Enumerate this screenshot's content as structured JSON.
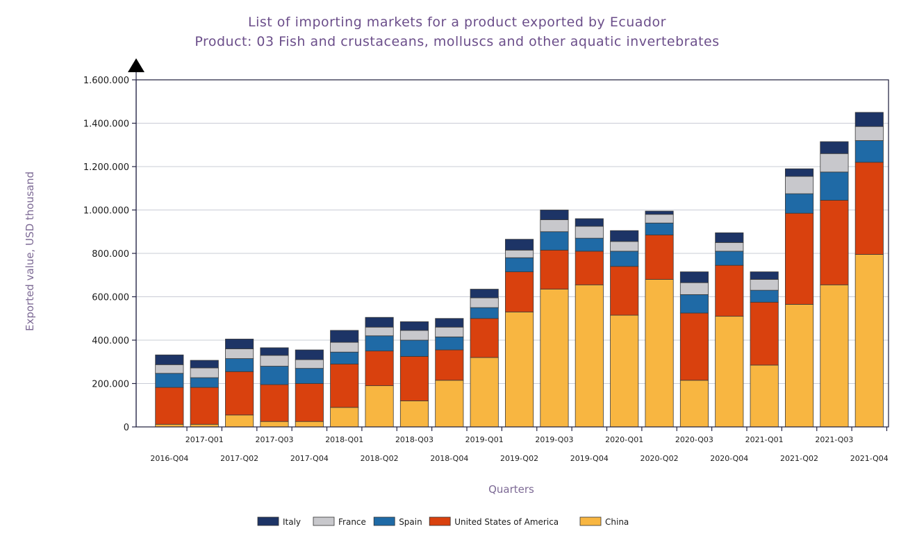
{
  "chart_data": {
    "type": "bar",
    "stacked": true,
    "title": "List of importing markets for a product exported by Ecuador",
    "subtitle": "Product: 03 Fish and crustaceans, molluscs and other aquatic invertebrates",
    "xlabel": "Quarters",
    "ylabel": "Exported value, USD thousand",
    "ylim": [
      0,
      1600000
    ],
    "yticks": [
      0,
      200000,
      400000,
      600000,
      800000,
      1000000,
      1200000,
      1400000,
      1600000
    ],
    "ytick_labels": [
      "0",
      "200.000",
      "400.000",
      "600.000",
      "800.000",
      "1.000.000",
      "1.200.000",
      "1.400.000",
      "1.600.000"
    ],
    "grid": true,
    "legend_position": "bottom",
    "categories": [
      "2016-Q04",
      "2017-Q01",
      "2017-Q02",
      "2017-Q03",
      "2017-Q04",
      "2018-Q01",
      "2018-Q02",
      "2018-Q03",
      "2018-Q04",
      "2019-Q01",
      "2019-Q02",
      "2019-Q03",
      "2019-Q04",
      "2020-Q01",
      "2020-Q02",
      "2020-Q03",
      "2020-Q04",
      "2021-Q01",
      "2021-Q02",
      "2021-Q03",
      "2021-Q04"
    ],
    "series": [
      {
        "name": "China",
        "color": "#f8b641",
        "values": [
          12000,
          12000,
          55000,
          25000,
          25000,
          90000,
          190000,
          120000,
          215000,
          320000,
          530000,
          635000,
          655000,
          515000,
          680000,
          215000,
          510000,
          285000,
          565000,
          655000,
          795000
        ]
      },
      {
        "name": "United States of America",
        "color": "#d9410e",
        "values": [
          170000,
          170000,
          200000,
          170000,
          175000,
          200000,
          160000,
          205000,
          140000,
          180000,
          185000,
          180000,
          155000,
          225000,
          205000,
          310000,
          235000,
          290000,
          420000,
          390000,
          425000
        ]
      },
      {
        "name": "Spain",
        "color": "#1f6aa6",
        "values": [
          65000,
          45000,
          60000,
          85000,
          70000,
          55000,
          70000,
          75000,
          60000,
          50000,
          65000,
          85000,
          60000,
          70000,
          55000,
          85000,
          65000,
          55000,
          90000,
          130000,
          100000
        ]
      },
      {
        "name": "France",
        "color": "#c8c8cc",
        "values": [
          40000,
          45000,
          45000,
          50000,
          40000,
          45000,
          40000,
          45000,
          45000,
          45000,
          35000,
          55000,
          55000,
          45000,
          40000,
          55000,
          40000,
          50000,
          80000,
          85000,
          65000
        ]
      },
      {
        "name": "Italy",
        "color": "#1d3466",
        "values": [
          45000,
          35000,
          45000,
          35000,
          45000,
          55000,
          45000,
          40000,
          40000,
          40000,
          50000,
          45000,
          35000,
          50000,
          15000,
          50000,
          45000,
          35000,
          35000,
          55000,
          65000
        ]
      }
    ],
    "legend_order": [
      "Italy",
      "France",
      "Spain",
      "United States of America",
      "China"
    ]
  }
}
